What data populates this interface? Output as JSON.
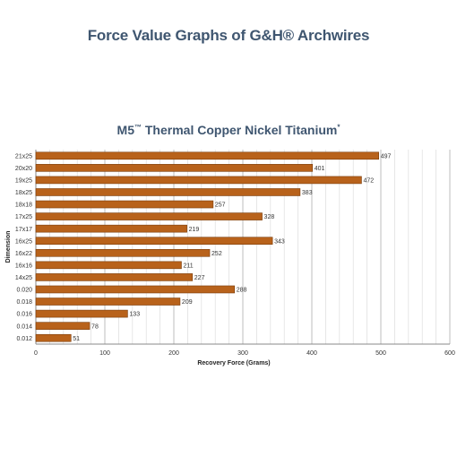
{
  "page": {
    "title": "Force Value Graphs of G&H® Archwires"
  },
  "chart_data": {
    "type": "bar",
    "orientation": "horizontal",
    "title_main": "M5",
    "title_tm": "™",
    "title_rest": " Thermal Copper Nickel Titanium",
    "title_mark": "*",
    "xlabel": "Recovery Force (Grams)",
    "ylabel": "Dimension",
    "xlim": [
      0,
      600
    ],
    "xticks": [
      0,
      100,
      200,
      300,
      400,
      500,
      600
    ],
    "grid": "vertical",
    "bar_color": "#b8621b",
    "categories": [
      "21x25",
      "20x20",
      "19x25",
      "18x25",
      "18x18",
      "17x25",
      "17x17",
      "16x25",
      "16x22",
      "16x16",
      "14x25",
      "0.020",
      "0.018",
      "0.016",
      "0.014",
      "0.012"
    ],
    "values": [
      497,
      401,
      472,
      383,
      257,
      328,
      219,
      343,
      252,
      211,
      227,
      288,
      209,
      133,
      78,
      51
    ]
  }
}
